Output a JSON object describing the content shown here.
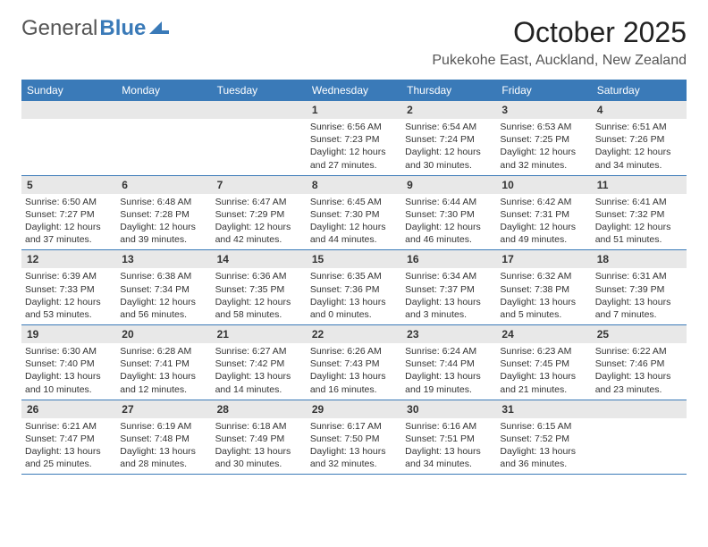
{
  "logo": {
    "text1": "General",
    "text2": "Blue"
  },
  "title": "October 2025",
  "location": "Pukekohe East, Auckland, New Zealand",
  "header_bg": "#3a7ab8",
  "daynum_bg": "#e8e8e8",
  "rule_color": "#3a7ab8",
  "day_names": [
    "Sunday",
    "Monday",
    "Tuesday",
    "Wednesday",
    "Thursday",
    "Friday",
    "Saturday"
  ],
  "weeks": [
    {
      "nums": [
        "",
        "",
        "",
        "1",
        "2",
        "3",
        "4"
      ],
      "cells": [
        {},
        {},
        {},
        {
          "sunrise": "Sunrise: 6:56 AM",
          "sunset": "Sunset: 7:23 PM",
          "day1": "Daylight: 12 hours",
          "day2": "and 27 minutes."
        },
        {
          "sunrise": "Sunrise: 6:54 AM",
          "sunset": "Sunset: 7:24 PM",
          "day1": "Daylight: 12 hours",
          "day2": "and 30 minutes."
        },
        {
          "sunrise": "Sunrise: 6:53 AM",
          "sunset": "Sunset: 7:25 PM",
          "day1": "Daylight: 12 hours",
          "day2": "and 32 minutes."
        },
        {
          "sunrise": "Sunrise: 6:51 AM",
          "sunset": "Sunset: 7:26 PM",
          "day1": "Daylight: 12 hours",
          "day2": "and 34 minutes."
        }
      ]
    },
    {
      "nums": [
        "5",
        "6",
        "7",
        "8",
        "9",
        "10",
        "11"
      ],
      "cells": [
        {
          "sunrise": "Sunrise: 6:50 AM",
          "sunset": "Sunset: 7:27 PM",
          "day1": "Daylight: 12 hours",
          "day2": "and 37 minutes."
        },
        {
          "sunrise": "Sunrise: 6:48 AM",
          "sunset": "Sunset: 7:28 PM",
          "day1": "Daylight: 12 hours",
          "day2": "and 39 minutes."
        },
        {
          "sunrise": "Sunrise: 6:47 AM",
          "sunset": "Sunset: 7:29 PM",
          "day1": "Daylight: 12 hours",
          "day2": "and 42 minutes."
        },
        {
          "sunrise": "Sunrise: 6:45 AM",
          "sunset": "Sunset: 7:30 PM",
          "day1": "Daylight: 12 hours",
          "day2": "and 44 minutes."
        },
        {
          "sunrise": "Sunrise: 6:44 AM",
          "sunset": "Sunset: 7:30 PM",
          "day1": "Daylight: 12 hours",
          "day2": "and 46 minutes."
        },
        {
          "sunrise": "Sunrise: 6:42 AM",
          "sunset": "Sunset: 7:31 PM",
          "day1": "Daylight: 12 hours",
          "day2": "and 49 minutes."
        },
        {
          "sunrise": "Sunrise: 6:41 AM",
          "sunset": "Sunset: 7:32 PM",
          "day1": "Daylight: 12 hours",
          "day2": "and 51 minutes."
        }
      ]
    },
    {
      "nums": [
        "12",
        "13",
        "14",
        "15",
        "16",
        "17",
        "18"
      ],
      "cells": [
        {
          "sunrise": "Sunrise: 6:39 AM",
          "sunset": "Sunset: 7:33 PM",
          "day1": "Daylight: 12 hours",
          "day2": "and 53 minutes."
        },
        {
          "sunrise": "Sunrise: 6:38 AM",
          "sunset": "Sunset: 7:34 PM",
          "day1": "Daylight: 12 hours",
          "day2": "and 56 minutes."
        },
        {
          "sunrise": "Sunrise: 6:36 AM",
          "sunset": "Sunset: 7:35 PM",
          "day1": "Daylight: 12 hours",
          "day2": "and 58 minutes."
        },
        {
          "sunrise": "Sunrise: 6:35 AM",
          "sunset": "Sunset: 7:36 PM",
          "day1": "Daylight: 13 hours",
          "day2": "and 0 minutes."
        },
        {
          "sunrise": "Sunrise: 6:34 AM",
          "sunset": "Sunset: 7:37 PM",
          "day1": "Daylight: 13 hours",
          "day2": "and 3 minutes."
        },
        {
          "sunrise": "Sunrise: 6:32 AM",
          "sunset": "Sunset: 7:38 PM",
          "day1": "Daylight: 13 hours",
          "day2": "and 5 minutes."
        },
        {
          "sunrise": "Sunrise: 6:31 AM",
          "sunset": "Sunset: 7:39 PM",
          "day1": "Daylight: 13 hours",
          "day2": "and 7 minutes."
        }
      ]
    },
    {
      "nums": [
        "19",
        "20",
        "21",
        "22",
        "23",
        "24",
        "25"
      ],
      "cells": [
        {
          "sunrise": "Sunrise: 6:30 AM",
          "sunset": "Sunset: 7:40 PM",
          "day1": "Daylight: 13 hours",
          "day2": "and 10 minutes."
        },
        {
          "sunrise": "Sunrise: 6:28 AM",
          "sunset": "Sunset: 7:41 PM",
          "day1": "Daylight: 13 hours",
          "day2": "and 12 minutes."
        },
        {
          "sunrise": "Sunrise: 6:27 AM",
          "sunset": "Sunset: 7:42 PM",
          "day1": "Daylight: 13 hours",
          "day2": "and 14 minutes."
        },
        {
          "sunrise": "Sunrise: 6:26 AM",
          "sunset": "Sunset: 7:43 PM",
          "day1": "Daylight: 13 hours",
          "day2": "and 16 minutes."
        },
        {
          "sunrise": "Sunrise: 6:24 AM",
          "sunset": "Sunset: 7:44 PM",
          "day1": "Daylight: 13 hours",
          "day2": "and 19 minutes."
        },
        {
          "sunrise": "Sunrise: 6:23 AM",
          "sunset": "Sunset: 7:45 PM",
          "day1": "Daylight: 13 hours",
          "day2": "and 21 minutes."
        },
        {
          "sunrise": "Sunrise: 6:22 AM",
          "sunset": "Sunset: 7:46 PM",
          "day1": "Daylight: 13 hours",
          "day2": "and 23 minutes."
        }
      ]
    },
    {
      "nums": [
        "26",
        "27",
        "28",
        "29",
        "30",
        "31",
        ""
      ],
      "cells": [
        {
          "sunrise": "Sunrise: 6:21 AM",
          "sunset": "Sunset: 7:47 PM",
          "day1": "Daylight: 13 hours",
          "day2": "and 25 minutes."
        },
        {
          "sunrise": "Sunrise: 6:19 AM",
          "sunset": "Sunset: 7:48 PM",
          "day1": "Daylight: 13 hours",
          "day2": "and 28 minutes."
        },
        {
          "sunrise": "Sunrise: 6:18 AM",
          "sunset": "Sunset: 7:49 PM",
          "day1": "Daylight: 13 hours",
          "day2": "and 30 minutes."
        },
        {
          "sunrise": "Sunrise: 6:17 AM",
          "sunset": "Sunset: 7:50 PM",
          "day1": "Daylight: 13 hours",
          "day2": "and 32 minutes."
        },
        {
          "sunrise": "Sunrise: 6:16 AM",
          "sunset": "Sunset: 7:51 PM",
          "day1": "Daylight: 13 hours",
          "day2": "and 34 minutes."
        },
        {
          "sunrise": "Sunrise: 6:15 AM",
          "sunset": "Sunset: 7:52 PM",
          "day1": "Daylight: 13 hours",
          "day2": "and 36 minutes."
        },
        {}
      ]
    }
  ]
}
